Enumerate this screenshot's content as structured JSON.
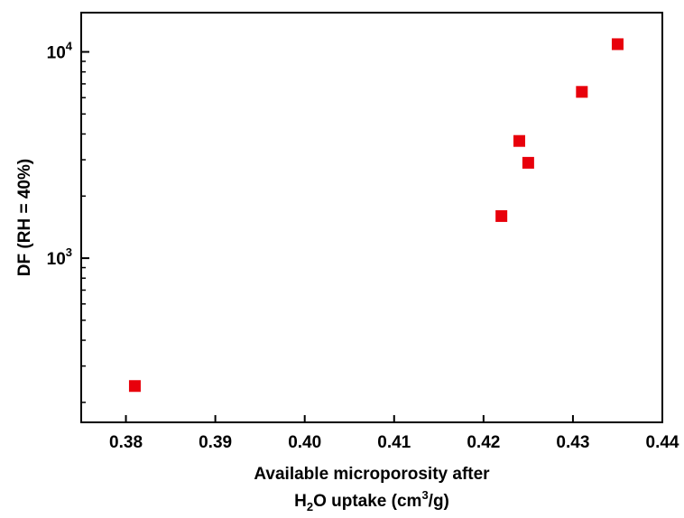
{
  "chart_data": {
    "type": "scatter",
    "title": "",
    "xlabel_line1": "Available microporosity after",
    "xlabel_line2_parts": [
      "H",
      "2",
      "O uptake (cm",
      "3",
      "/g)"
    ],
    "ylabel": "DF (RH = 40%)",
    "xlim": [
      0.375,
      0.44
    ],
    "ylim": [
      160,
      15500
    ],
    "yscale": "log",
    "x_ticks": [
      "0.38",
      "0.39",
      "0.40",
      "0.41",
      "0.42",
      "0.43",
      "0.44"
    ],
    "x_tick_values": [
      0.38,
      0.39,
      0.4,
      0.41,
      0.42,
      0.43,
      0.44
    ],
    "y_major_ticks": [
      1000,
      10000
    ],
    "y_tick_labels": [
      {
        "base": "10",
        "exp": "3"
      },
      {
        "base": "10",
        "exp": "4"
      }
    ],
    "grid": false,
    "marker_color": "#e8000b",
    "marker": "square",
    "series": [
      {
        "x": [
          0.381,
          0.422,
          0.424,
          0.425,
          0.431,
          0.435
        ],
        "y": [
          240,
          1600,
          3700,
          2900,
          6400,
          10900
        ]
      }
    ]
  }
}
